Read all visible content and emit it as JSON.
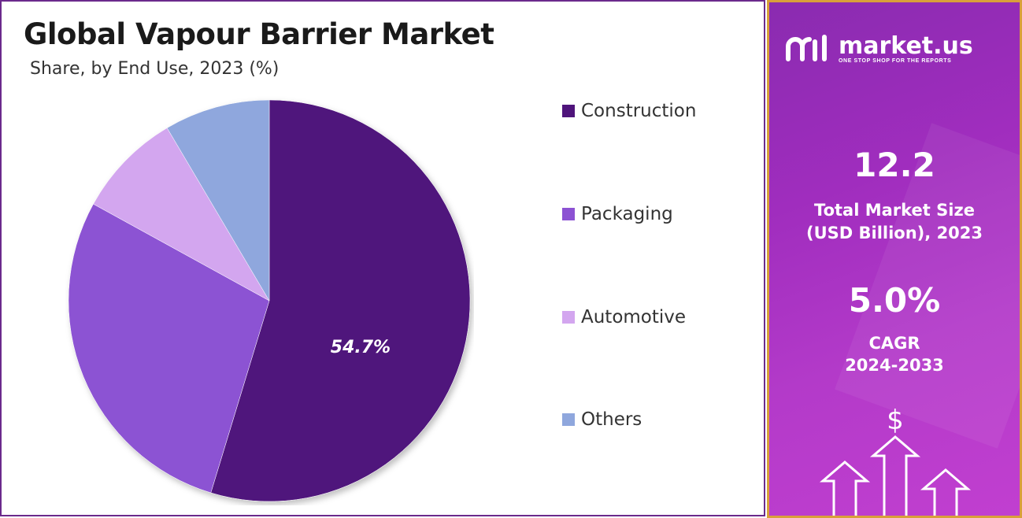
{
  "chart_data": {
    "type": "pie",
    "title": "Global Vapour Barrier Market",
    "subtitle": "Share, by End Use, 2023 (%)",
    "categories": [
      "Construction",
      "Packaging",
      "Automotive",
      "Others"
    ],
    "values": [
      54.7,
      28.3,
      8.5,
      8.5
    ],
    "colors": [
      "#4f147b",
      "#8c52d3",
      "#d3a6ef",
      "#8fa7dd"
    ],
    "data_labels": [
      "54.7%",
      "",
      "",
      ""
    ],
    "legend_position": "right"
  },
  "side_panel": {
    "brand": "market.us",
    "tagline": "ONE STOP SHOP FOR THE REPORTS",
    "market_size_value": "12.2",
    "market_size_label_line1": "Total Market Size",
    "market_size_label_line2": "(USD Billion), 2023",
    "cagr_value": "5.0%",
    "cagr_label_line1": "CAGR",
    "cagr_label_line2": "2024-2033",
    "dollar_symbol": "$"
  }
}
